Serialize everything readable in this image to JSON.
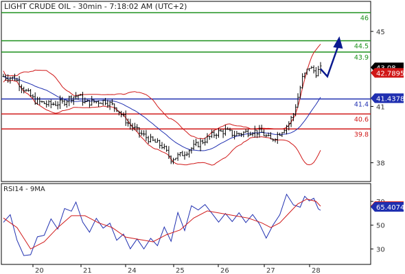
{
  "chart_data": [
    {
      "type": "candlestick",
      "title": "LIGHT CRUDE OIL - 30min - 7:18:02 AM (UTC+2)",
      "x_categories": [
        "20",
        "21",
        "24",
        "25",
        "26",
        "27",
        "28"
      ],
      "y_ticks": [
        38,
        41,
        45
      ],
      "ylim": [
        37.0,
        46.6
      ],
      "price_path": [
        [
          0,
          42.6
        ],
        [
          5,
          42.5
        ],
        [
          10,
          41.8
        ],
        [
          14,
          41.3
        ],
        [
          20,
          41.1
        ],
        [
          26,
          41.2
        ],
        [
          30,
          41.5
        ],
        [
          33,
          41.6
        ],
        [
          36,
          41.2
        ],
        [
          40,
          41.25
        ],
        [
          45,
          41.3
        ],
        [
          50,
          40.9
        ],
        [
          55,
          40.1
        ],
        [
          60,
          39.6
        ],
        [
          65,
          39.2
        ],
        [
          70,
          38.9
        ],
        [
          74,
          38.2
        ],
        [
          78,
          38.4
        ],
        [
          82,
          38.7
        ],
        [
          86,
          39.0
        ],
        [
          90,
          39.3
        ],
        [
          94,
          39.6
        ],
        [
          98,
          39.7
        ],
        [
          102,
          39.5
        ],
        [
          106,
          39.6
        ],
        [
          110,
          39.7
        ],
        [
          114,
          39.6
        ],
        [
          118,
          39.2
        ],
        [
          122,
          39.6
        ],
        [
          126,
          40.1
        ],
        [
          128,
          40.6
        ],
        [
          130,
          41.5
        ],
        [
          132,
          42.5
        ],
        [
          135,
          43.1
        ],
        [
          138,
          42.8
        ],
        [
          140,
          43.0
        ]
      ],
      "levels": [
        {
          "value": 46,
          "label": "46",
          "color": "#1a8f1a"
        },
        {
          "value": 44.5,
          "label": "44.5",
          "color": "#1a8f1a"
        },
        {
          "value": 43.9,
          "label": "43.9",
          "color": "#1a8f1a"
        },
        {
          "value": 41.4,
          "label": "41.4",
          "color": "#1f2fb0"
        },
        {
          "value": 40.6,
          "label": "40.6",
          "color": "#d01818"
        },
        {
          "value": 39.8,
          "label": "39.8",
          "color": "#d01818"
        }
      ],
      "projection": [
        [
          140,
          43.0
        ],
        [
          143,
          42.6
        ],
        [
          148,
          44.3
        ]
      ],
      "badges": [
        {
          "value": 43.08,
          "label": "43.08",
          "color": "#000000"
        },
        {
          "value": 42.7895,
          "label": "42.7895",
          "color": "#d01818"
        },
        {
          "value": 41.4378,
          "label": "41.4378",
          "color": "#1f2fb0"
        }
      ],
      "legend": "none",
      "grid": false
    },
    {
      "type": "line",
      "title": "RSI14 - 9MA",
      "y_ticks": [
        30,
        50,
        70
      ],
      "ylim": [
        17,
        85
      ],
      "series": [
        {
          "color": "#1f2fb0",
          "values": [
            [
              0,
              54
            ],
            [
              3,
              60
            ],
            [
              6,
              38
            ],
            [
              9,
              22
            ],
            [
              12,
              24
            ],
            [
              15,
              38
            ],
            [
              18,
              42
            ],
            [
              21,
              56
            ],
            [
              24,
              45
            ],
            [
              27,
              66
            ],
            [
              30,
              60
            ],
            [
              32,
              69
            ],
            [
              35,
              52
            ],
            [
              38,
              45
            ],
            [
              41,
              55
            ],
            [
              44,
              50
            ],
            [
              47,
              52
            ],
            [
              50,
              38
            ],
            [
              53,
              45
            ],
            [
              56,
              30
            ],
            [
              59,
              40
            ],
            [
              62,
              33
            ],
            [
              65,
              36
            ],
            [
              68,
              32
            ],
            [
              71,
              50
            ],
            [
              74,
              38
            ],
            [
              77,
              58
            ],
            [
              80,
              47
            ],
            [
              83,
              65
            ],
            [
              86,
              62
            ],
            [
              89,
              68
            ],
            [
              92,
              58
            ],
            [
              95,
              55
            ],
            [
              98,
              62
            ],
            [
              101,
              56
            ],
            [
              104,
              59
            ],
            [
              107,
              50
            ],
            [
              110,
              58
            ],
            [
              113,
              54
            ],
            [
              116,
              42
            ],
            [
              119,
              52
            ],
            [
              122,
              60
            ],
            [
              125,
              73
            ],
            [
              128,
              70
            ],
            [
              131,
              68
            ],
            [
              133,
              76
            ],
            [
              135,
              70
            ],
            [
              137,
              72
            ],
            [
              139,
              66
            ],
            [
              140,
              64
            ]
          ]
        },
        {
          "color": "#d01818",
          "values": [
            [
              0,
              56
            ],
            [
              6,
              48
            ],
            [
              12,
              30
            ],
            [
              18,
              36
            ],
            [
              24,
              48
            ],
            [
              30,
              58
            ],
            [
              36,
              58
            ],
            [
              42,
              52
            ],
            [
              48,
              48
            ],
            [
              54,
              40
            ],
            [
              60,
              38
            ],
            [
              66,
              36
            ],
            [
              72,
              42
            ],
            [
              78,
              46
            ],
            [
              84,
              56
            ],
            [
              90,
              62
            ],
            [
              96,
              60
            ],
            [
              102,
              58
            ],
            [
              108,
              56
            ],
            [
              114,
              52
            ],
            [
              118,
              48
            ],
            [
              122,
              52
            ],
            [
              126,
              60
            ],
            [
              130,
              68
            ],
            [
              134,
              72
            ],
            [
              138,
              70
            ],
            [
              140,
              66
            ]
          ]
        }
      ],
      "badges": [
        {
          "value": 66.012,
          "label": "66.012",
          "color": "#d01818"
        },
        {
          "value": 65.4074,
          "label": "65.4074",
          "color": "#1f2fb0"
        }
      ],
      "legend": "none",
      "grid": false
    }
  ]
}
